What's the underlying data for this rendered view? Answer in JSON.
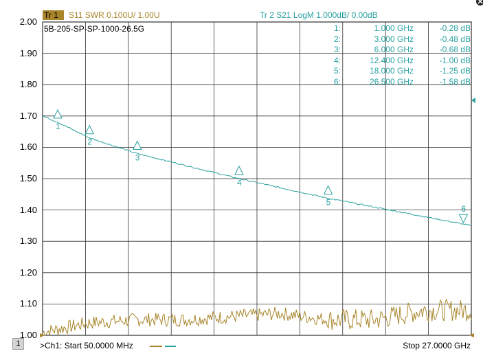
{
  "trace1": {
    "tag": "Tr  1",
    "label": "S11  SWR 0.100U/  1.00U",
    "color": "#a8852a"
  },
  "trace2": {
    "label": "Tr  2   S21  LogM 1.000dB/  0.00dB",
    "color": "#2aa0a0"
  },
  "cable_name": "5B-205-SP-SP-1000-26.5G",
  "y_axis": {
    "labels": [
      "2.00",
      "1.90",
      "1.80",
      "1.70",
      "1.60",
      "1.50",
      "1.40",
      "1.30",
      "1.20",
      "1.10",
      "1.00"
    ]
  },
  "markers": [
    {
      "id": "1:",
      "num": "1",
      "freq": "1.000 GHz",
      "value": "-0.28 dB",
      "freq_ghz": 1.0,
      "db": -0.28
    },
    {
      "id": "2:",
      "num": "2",
      "freq": "3.000 GHz",
      "value": "-0.48 dB",
      "freq_ghz": 3.0,
      "db": -0.48
    },
    {
      "id": "3:",
      "num": "3",
      "freq": "6.000 GHz",
      "value": "-0.68 dB",
      "freq_ghz": 6.0,
      "db": -0.68
    },
    {
      "id": "4:",
      "num": "4",
      "freq": "12.400 GHz",
      "value": "-1.00 dB",
      "freq_ghz": 12.4,
      "db": -1.0
    },
    {
      "id": "5:",
      "num": "5",
      "freq": "18.000 GHz",
      "value": "-1.25 dB",
      "freq_ghz": 18.0,
      "db": -1.25
    },
    {
      "id": "6:",
      "num": "6",
      "freq": "26.500 GHz",
      "value": "-1.58 dB",
      "freq_ghz": 26.5,
      "db": -1.58
    }
  ],
  "footer": {
    "channel": "1",
    "start": ">Ch1: Start  50.0000 MHz",
    "stop": "Stop  27.0000 GHz"
  },
  "chart_data": {
    "type": "line",
    "x_range_ghz": [
      0.05,
      27.0
    ],
    "swr_ylim": [
      1.0,
      2.0
    ],
    "s21_scale": "1.000 dB/div, reference 0.00 dB",
    "series": [
      {
        "name": "S11  SWR",
        "color": "#a8852a",
        "x_ghz": [
          0.05,
          3.0,
          6.0,
          9.0,
          12.0,
          15.0,
          18.0,
          21.0,
          24.0,
          27.0
        ],
        "swr": [
          1.01,
          1.04,
          1.05,
          1.05,
          1.06,
          1.07,
          1.05,
          1.05,
          1.08,
          1.08
        ]
      },
      {
        "name": "S21  LogM",
        "color": "#2aa0a0",
        "x_ghz": [
          0.05,
          1.0,
          3.0,
          6.0,
          12.4,
          18.0,
          26.5,
          27.0
        ],
        "db": [
          -0.2,
          -0.28,
          -0.48,
          -0.68,
          -1.0,
          -1.25,
          -1.58,
          -1.6
        ]
      }
    ]
  }
}
